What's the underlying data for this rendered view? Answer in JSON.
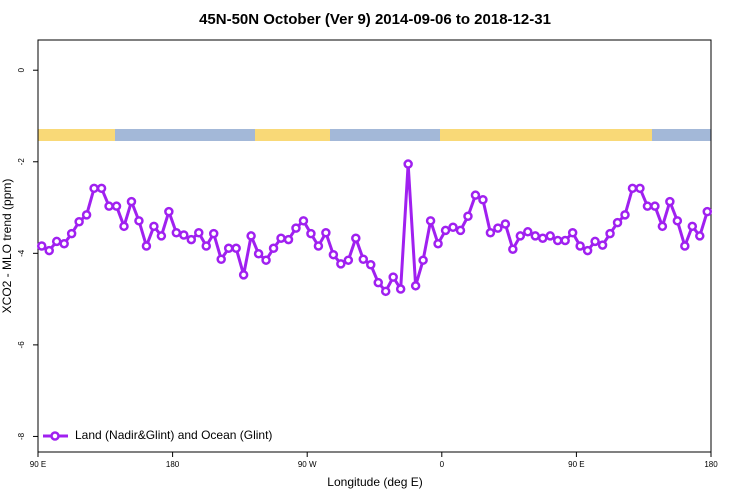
{
  "chart_data": {
    "type": "line",
    "title": "45N-50N October (Ver 9)   2014-09-06 to 2018-12-31",
    "x_label": "Longitude (deg E)",
    "y_label": "XCO2 - MLO trend (ppm)",
    "xlim": [
      90,
      540
    ],
    "ylim": [
      -8.34,
      0.66
    ],
    "xticks": [
      {
        "value": 90,
        "label": "90 E"
      },
      180,
      {
        "value": 270,
        "label": "90 W"
      },
      {
        "value": 360,
        "label": "0"
      },
      {
        "value": 450,
        "label": "90 E"
      },
      {
        "value": 540,
        "label": "180"
      }
    ],
    "yticks": [
      -8,
      -6,
      -4,
      -2,
      0
    ],
    "legend": "bottom-left",
    "x": [
      92.5,
      97.5,
      102.5,
      107.5,
      112.5,
      117.5,
      122.5,
      127.5,
      132.5,
      137.5,
      142.5,
      147.5,
      152.5,
      157.5,
      162.5,
      167.5,
      172.5,
      177.5,
      182.5,
      187.5,
      192.5,
      197.5,
      202.5,
      207.5,
      212.5,
      217.5,
      222.5,
      227.5,
      232.5,
      237.5,
      242.5,
      247.5,
      252.5,
      257.5,
      262.5,
      267.5,
      272.5,
      277.5,
      282.5,
      287.5,
      292.5,
      297.5,
      302.5,
      307.5,
      312.5,
      317.5,
      322.5,
      327.5,
      332.5,
      337.5,
      342.5,
      347.5,
      352.5,
      357.5,
      362.5,
      367.5,
      372.5,
      377.5,
      382.5,
      387.5,
      392.5,
      397.5,
      402.5,
      407.5,
      412.5,
      417.5,
      422.5,
      427.5,
      432.5,
      437.5,
      442.5,
      447.5,
      452.5,
      457.5,
      462.5,
      467.5,
      472.5,
      477.5,
      482.5,
      487.5,
      492.5,
      497.5,
      502.5,
      507.5,
      512.5,
      517.5,
      522.5,
      527.5,
      532.5,
      537.5
    ],
    "series": [
      {
        "name": "Land (Nadir&Glint) and Ocean (Glint)",
        "color": "#a020f0",
        "values": [
          -3.84,
          -3.94,
          -3.74,
          -3.79,
          -3.57,
          -3.31,
          -3.16,
          -2.58,
          -2.58,
          -2.97,
          -2.97,
          -3.41,
          -2.87,
          -3.29,
          -3.84,
          -3.41,
          -3.62,
          -3.09,
          -3.55,
          -3.6,
          -3.7,
          -3.55,
          -3.84,
          -3.57,
          -4.13,
          -3.89,
          -3.89,
          -4.47,
          -3.62,
          -4.01,
          -4.15,
          -3.89,
          -3.67,
          -3.7,
          -3.45,
          -3.29,
          -3.57,
          -3.84,
          -3.55,
          -4.03,
          -4.23,
          -4.15,
          -3.67,
          -4.13,
          -4.25,
          -4.64,
          -4.83,
          -4.52,
          -4.78,
          -2.05,
          -4.71,
          -4.15,
          -3.29,
          -3.79,
          -3.5,
          -3.43,
          -3.5,
          -3.19,
          -2.73,
          -2.83,
          -3.55,
          -3.45,
          -3.36,
          -3.91,
          -3.62,
          -3.53,
          -3.62,
          -3.67,
          -3.62,
          -3.72,
          -3.72,
          -3.55,
          -3.84,
          -3.94,
          -3.74,
          -3.82,
          -3.57,
          -3.33,
          -3.16,
          -2.58,
          -2.58,
          -2.97,
          -2.97,
          -3.41,
          -2.87,
          -3.29,
          -3.84,
          -3.41,
          -3.62,
          -3.09
        ]
      }
    ]
  }
}
